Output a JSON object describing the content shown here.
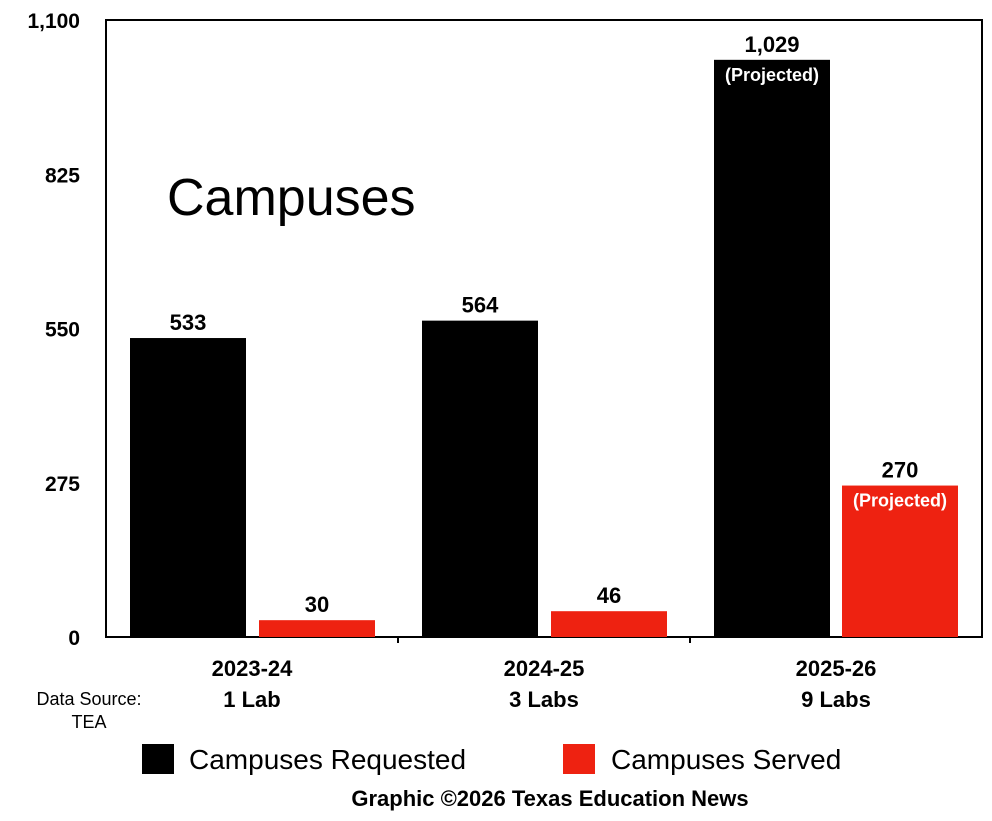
{
  "chart_data": {
    "type": "bar",
    "title": "Campuses",
    "categories": [
      "2023-24",
      "2024-25",
      "2025-26"
    ],
    "category_sublabels": [
      "1 Lab",
      "3 Labs",
      "9 Labs"
    ],
    "series": [
      {
        "name": "Campuses Requested",
        "color": "#000000",
        "values": [
          533,
          564,
          1029
        ],
        "labels": [
          "533",
          "564",
          "1,029"
        ],
        "notes": [
          "",
          "",
          "(Projected)"
        ]
      },
      {
        "name": "Campuses Served",
        "color": "#ee2211",
        "values": [
          30,
          46,
          270
        ],
        "labels": [
          "30",
          "46",
          "270"
        ],
        "notes": [
          "",
          "",
          "(Projected)"
        ]
      }
    ],
    "ylim": [
      0,
      1100
    ],
    "yticks": [
      0,
      275,
      550,
      825,
      1100
    ],
    "ytick_labels": [
      "0",
      "275",
      "550",
      "825",
      "1,100"
    ],
    "grid": false,
    "legend_position": "bottom"
  },
  "source": {
    "line1": "Data Source:",
    "line2": "TEA"
  },
  "credit": "Graphic ©2026 Texas Education News"
}
